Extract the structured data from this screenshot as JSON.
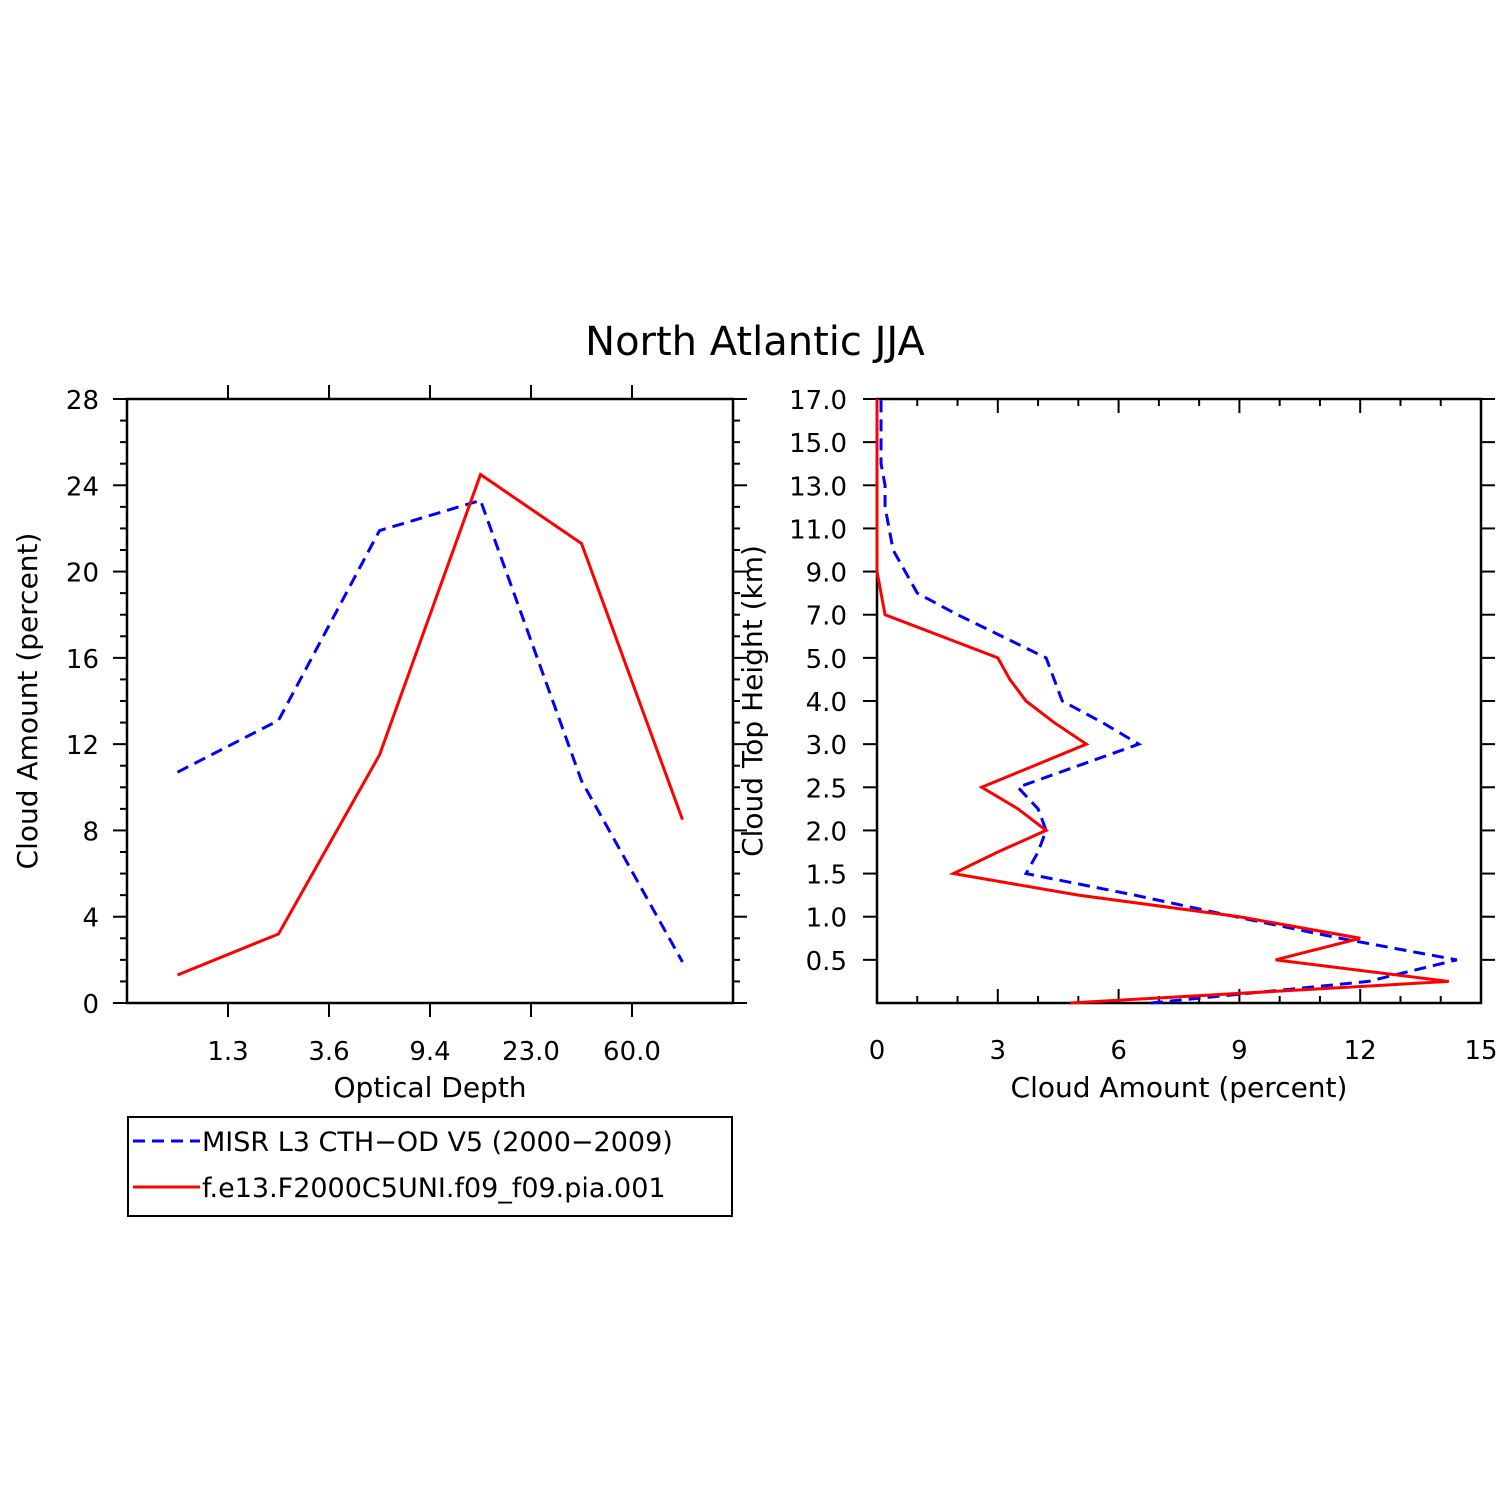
{
  "title": "North Atlantic JJA",
  "colors": {
    "obs": "#0000ff",
    "model": "#ff0000",
    "axis": "#000000"
  },
  "legend": [
    {
      "label": "MISR L3 CTH−OD V5 (2000−2009)",
      "color": "#0000ff",
      "style": "dashed"
    },
    {
      "label": "f.e13.F2000C5UNI.f09_f09.pia.001",
      "color": "#ff0000",
      "style": "solid"
    }
  ],
  "chart_data": [
    {
      "type": "line",
      "xlabel": "Optical Depth",
      "ylabel": "Cloud Amount (percent)",
      "x_scale": "categorical",
      "x_tick_labels": [
        "1.3",
        "3.6",
        "9.4",
        "23.0",
        "60.0"
      ],
      "ylim": [
        0,
        28
      ],
      "y_ticks": [
        0,
        4,
        8,
        12,
        16,
        20,
        24,
        28
      ],
      "y_tick_labels": [
        "0",
        "4",
        "8",
        "12",
        "16",
        "20",
        "24",
        "28"
      ],
      "x_points": [
        0.5,
        1.5,
        2.5,
        3.5,
        4.5,
        5.5
      ],
      "series": [
        {
          "name": "MISR L3 CTH−OD V5 (2000−2009)",
          "style": "dashed",
          "values": [
            10.7,
            13.1,
            21.9,
            23.3,
            10.3,
            1.9
          ]
        },
        {
          "name": "f.e13.F2000C5UNI.f09_f09.pia.001",
          "style": "solid",
          "values": [
            1.3,
            3.2,
            11.5,
            24.5,
            21.3,
            8.5
          ]
        }
      ]
    },
    {
      "type": "line",
      "orientation": "horizontal",
      "xlabel": "Cloud Amount (percent)",
      "ylabel": "Cloud Top Height (km)",
      "xlim": [
        0,
        15
      ],
      "x_ticks": [
        0,
        3,
        6,
        9,
        12,
        15
      ],
      "x_tick_labels": [
        "0",
        "3",
        "6",
        "9",
        "12",
        "15"
      ],
      "y_tick_labels": [
        "0.5",
        "1.0",
        "1.5",
        "2.0",
        "2.5",
        "3.0",
        "4.0",
        "5.0",
        "7.0",
        "9.0",
        "11.0",
        "13.0",
        "15.0",
        "17.0"
      ],
      "y_points": [
        0,
        0.5,
        1,
        1.5,
        2,
        2.5,
        3,
        3.5,
        4,
        4.5,
        5,
        5.5,
        6,
        6.5,
        7,
        7.5,
        8,
        8.5,
        9,
        9.5,
        10,
        10.5,
        11,
        11.5,
        12,
        12.5,
        13,
        13.5,
        14
      ],
      "series": [
        {
          "name": "MISR L3 CTH−OD V5 (2000−2009)",
          "style": "dashed",
          "values": [
            6.8,
            12.2,
            14.4,
            11.5,
            8.9,
            6.4,
            3.7,
            4.0,
            4.2,
            4.0,
            3.5,
            5.0,
            6.5,
            5.6,
            4.6,
            4.4,
            4.2,
            3.1,
            2.0,
            1.0,
            0.7,
            0.4,
            0.3,
            0.2,
            0.2,
            0.1,
            0.1,
            0.1,
            0.1
          ]
        },
        {
          "name": "f.e13.F2000C5UNI.f09_f09.pia.001",
          "style": "solid",
          "values": [
            4.8,
            14.2,
            9.9,
            12.0,
            9.0,
            5.0,
            1.9,
            3.0,
            4.2,
            3.5,
            2.6,
            3.9,
            5.2,
            4.4,
            3.7,
            3.3,
            3.0,
            1.6,
            0.2,
            0.1,
            0.0,
            0.0,
            0.0,
            0.0,
            0.0,
            0.0,
            0.0,
            0.0,
            0.0
          ]
        }
      ]
    }
  ]
}
